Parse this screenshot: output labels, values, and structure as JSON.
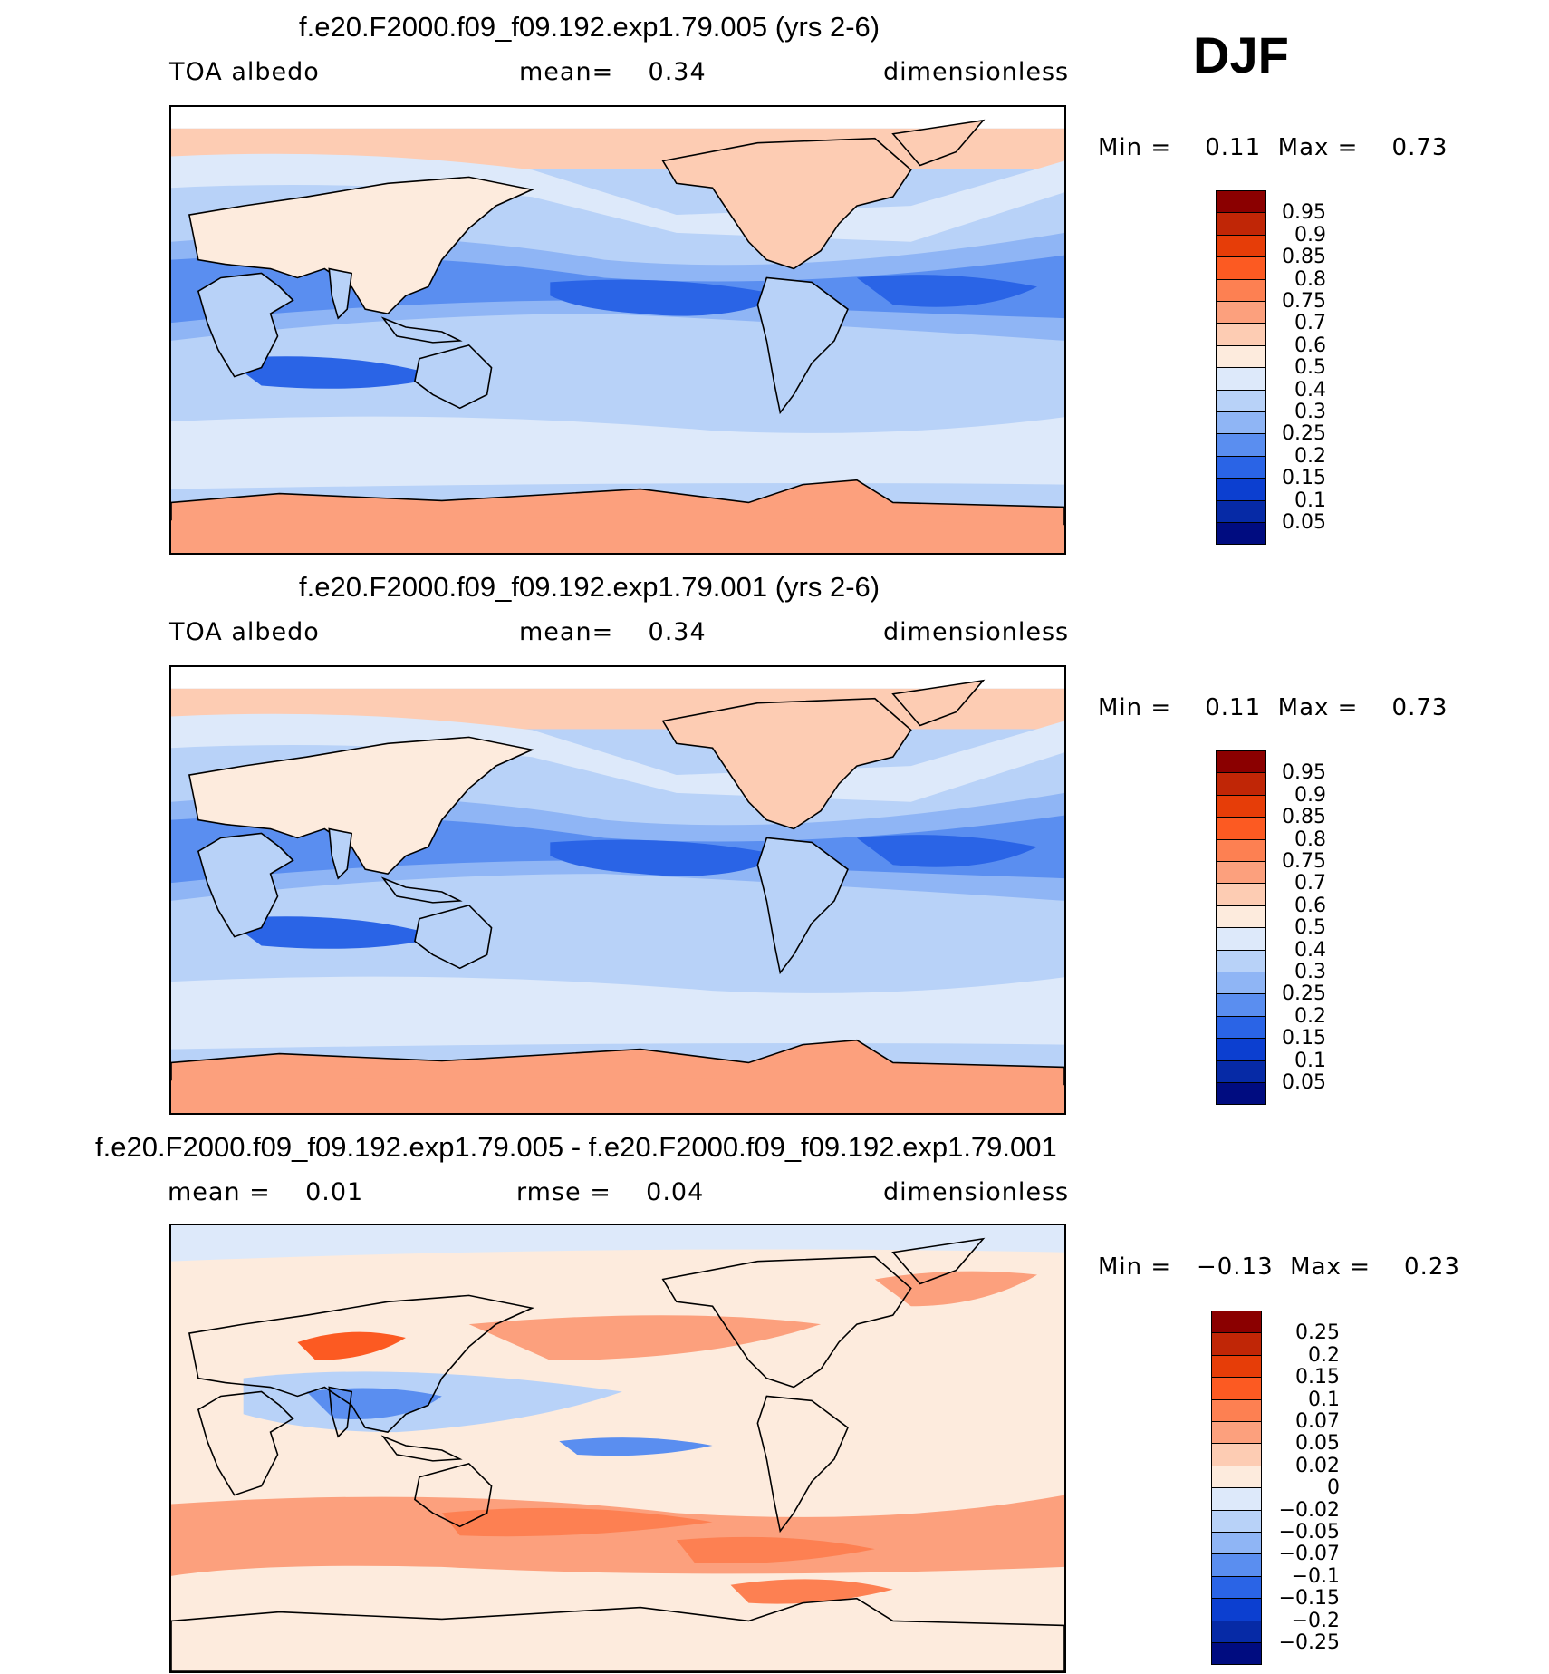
{
  "season": "DJF",
  "panels": [
    {
      "id": "top",
      "title": "f.e20.F2000.f09_f09.192.exp1.79.005 (yrs 2-6)",
      "left_label": "TOA albedo",
      "mid_label": "mean=    0.34",
      "right_label": "dimensionless",
      "minmax": "Min =    0.11  Max =    0.73",
      "pattern": "abs"
    },
    {
      "id": "middle",
      "title": "f.e20.F2000.f09_f09.192.exp1.79.001 (yrs 2-6)",
      "left_label": "TOA albedo",
      "mid_label": "mean=    0.34",
      "right_label": "dimensionless",
      "minmax": "Min =    0.11  Max =    0.73",
      "pattern": "abs"
    },
    {
      "id": "bottom",
      "title": "f.e20.F2000.f09_f09.192.exp1.79.005 - f.e20.F2000.f09_f09.192.exp1.79.001",
      "left_label": "mean =    0.01",
      "mid_label": "rmse =    0.04",
      "right_label": "dimensionless",
      "minmax": "Min =   −0.13  Max =    0.23",
      "pattern": "diff"
    }
  ],
  "colorbars": {
    "abs": {
      "labels": [
        "0.95",
        "0.9",
        "0.85",
        "0.8",
        "0.75",
        "0.7",
        "0.6",
        "0.5",
        "0.4",
        "0.3",
        "0.25",
        "0.2",
        "0.15",
        "0.1",
        "0.05"
      ],
      "colors": [
        "#8b0000",
        "#c02606",
        "#e63d08",
        "#fc5a22",
        "#fd8052",
        "#fca07d",
        "#fdccb3",
        "#fdebdd",
        "#dde9fa",
        "#b8d2f8",
        "#8fb5f5",
        "#5a8ef0",
        "#2a64e6",
        "#0c3fd0",
        "#062aa6",
        "#000c80"
      ]
    },
    "diff": {
      "labels": [
        "0.25",
        "0.2",
        "0.15",
        "0.1",
        "0.07",
        "0.05",
        "0.02",
        "0",
        "−0.02",
        "−0.05",
        "−0.07",
        "−0.1",
        "−0.15",
        "−0.2",
        "−0.25"
      ],
      "colors": [
        "#8b0000",
        "#c02606",
        "#e63d08",
        "#fc5a22",
        "#fd8052",
        "#fca07d",
        "#fdccb3",
        "#fdebdd",
        "#dde9fa",
        "#b8d2f8",
        "#8fb5f5",
        "#5a8ef0",
        "#2a64e6",
        "#0c3fd0",
        "#062aa6",
        "#000c80"
      ]
    }
  }
}
